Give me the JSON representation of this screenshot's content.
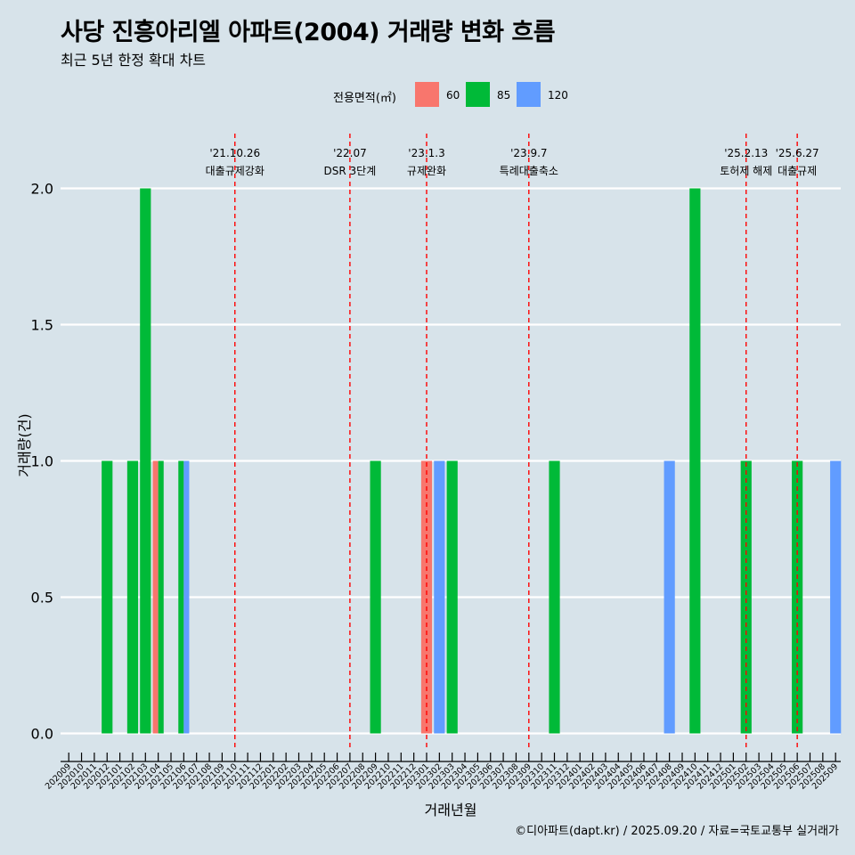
{
  "title": "사당 진흥아리엘 아파트(2004) 거래량 변화 흐름",
  "subtitle": "최근 5년 한정 확대 차트",
  "caption": "©디아파트(dapt.kr) / 2025.09.20 / 자료=국토교통부 실거래가",
  "legend": {
    "title": "전용면적(㎡)",
    "items": [
      {
        "label": "60",
        "color": "#f8766d"
      },
      {
        "label": "85",
        "color": "#00ba38"
      },
      {
        "label": "120",
        "color": "#619cff"
      }
    ]
  },
  "chart_data": {
    "type": "bar",
    "xlabel": "거래년월",
    "ylabel": "거래량(건)",
    "ylim": [
      -0.16,
      2.2
    ],
    "yticks": [
      "0.0",
      "0.5",
      "1.0",
      "1.5",
      "2.0"
    ],
    "categories": [
      "202009",
      "202010",
      "202011",
      "202012",
      "202101",
      "202102",
      "202103",
      "202104",
      "202105",
      "202106",
      "202107",
      "202108",
      "202109",
      "202110",
      "202111",
      "202112",
      "202201",
      "202202",
      "202203",
      "202204",
      "202205",
      "202206",
      "202207",
      "202208",
      "202209",
      "202210",
      "202211",
      "202212",
      "202301",
      "202302",
      "202303",
      "202304",
      "202305",
      "202306",
      "202307",
      "202308",
      "202309",
      "202310",
      "202311",
      "202312",
      "202401",
      "202402",
      "202403",
      "202404",
      "202405",
      "202406",
      "202407",
      "202408",
      "202409",
      "202410",
      "202411",
      "202412",
      "202501",
      "202502",
      "202503",
      "202504",
      "202505",
      "202506",
      "202507",
      "202508",
      "202509"
    ],
    "series": [
      {
        "name": "60",
        "color": "#f8766d",
        "points": [
          {
            "x": "202104",
            "y": 1
          },
          {
            "x": "202301",
            "y": 1
          }
        ]
      },
      {
        "name": "85",
        "color": "#00ba38",
        "points": [
          {
            "x": "202012",
            "y": 1
          },
          {
            "x": "202102",
            "y": 1
          },
          {
            "x": "202103",
            "y": 2
          },
          {
            "x": "202104",
            "y": 1
          },
          {
            "x": "202106",
            "y": 1
          },
          {
            "x": "202209",
            "y": 1
          },
          {
            "x": "202303",
            "y": 1
          },
          {
            "x": "202311",
            "y": 1
          },
          {
            "x": "202410",
            "y": 2
          },
          {
            "x": "202502",
            "y": 1
          },
          {
            "x": "202506",
            "y": 1
          }
        ]
      },
      {
        "name": "120",
        "color": "#619cff",
        "points": [
          {
            "x": "202106",
            "y": 1
          },
          {
            "x": "202302",
            "y": 1
          },
          {
            "x": "202408",
            "y": 1
          },
          {
            "x": "202509",
            "y": 1
          }
        ]
      }
    ],
    "annotations": [
      {
        "x": "202110",
        "date": "'21.10.26",
        "label": "대출규제강화"
      },
      {
        "x": "202207",
        "date": "'22.07",
        "label": "DSR 3단계"
      },
      {
        "x": "202301",
        "date": "'23.1.3",
        "label": "규제완화"
      },
      {
        "x": "202309",
        "date": "'23.9.7",
        "label": "특례대출축소"
      },
      {
        "x": "202502",
        "date": "'25.2.13",
        "label": "토허제 해제"
      },
      {
        "x": "202506",
        "date": "'25.6.27",
        "label": "대출규제"
      }
    ],
    "grid": "horizontal",
    "legend_position": "top"
  }
}
